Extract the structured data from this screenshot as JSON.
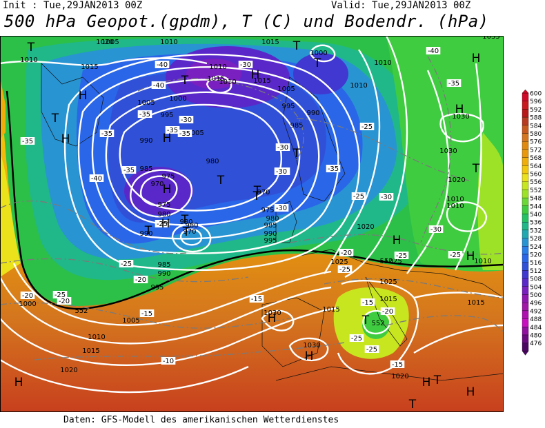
{
  "header": {
    "init": "Init : Tue,29JAN2013 00Z",
    "valid": "Valid: Tue,29JAN2013 00Z",
    "title": "500 hPa Geopot.(gpdm), T (C) und Bodendr. (hPa)"
  },
  "footer": {
    "source": "Daten: GFS-Modell des amerikanischen Wetterdienstes"
  },
  "legend": {
    "levels": [
      "600",
      "596",
      "592",
      "588",
      "584",
      "580",
      "576",
      "572",
      "568",
      "564",
      "560",
      "556",
      "552",
      "548",
      "544",
      "540",
      "536",
      "532",
      "528",
      "524",
      "520",
      "516",
      "512",
      "508",
      "504",
      "500",
      "496",
      "492",
      "488",
      "484",
      "480",
      "476"
    ],
    "colors": [
      "#d10a2a",
      "#c81a20",
      "#b81818",
      "#b83a20",
      "#c85a1e",
      "#d4761e",
      "#e08a10",
      "#e89a0c",
      "#efae0a",
      "#f3c70c",
      "#ece21c",
      "#c8e620",
      "#9ee228",
      "#6cd838",
      "#40cc40",
      "#24c264",
      "#20b888",
      "#22a8b0",
      "#2894d2",
      "#2a7ee8",
      "#2a66e8",
      "#3050d8",
      "#4038d0",
      "#5a28c8",
      "#7a20c0",
      "#9018b0",
      "#a018a8",
      "#b010b0",
      "#c810c0",
      "#9010a0",
      "#6a0a80",
      "#4a0660"
    ]
  },
  "map": {
    "pressure_labels": [
      "1020",
      "1010",
      "1010",
      "1015",
      "1000",
      "1010",
      "1015",
      "1010",
      "1005",
      "1000",
      "1005",
      "995",
      "995",
      "1005",
      "990",
      "985",
      "990",
      "985",
      "980",
      "975",
      "970",
      "975",
      "980",
      "970",
      "980",
      "975",
      "980",
      "985",
      "990",
      "995",
      "985",
      "990",
      "995",
      "1000",
      "1005",
      "1010",
      "1015",
      "1020",
      "1025",
      "1030",
      "1030",
      "1025",
      "1020",
      "1030",
      "1015",
      "1020",
      "1015",
      "1015",
      "1010",
      "1010",
      "1015",
      "1005",
      "1010",
      "1015",
      "1025",
      "1035",
      "1030",
      "1020",
      "1010",
      "1010",
      "990",
      "980",
      "970"
    ],
    "temperature_labels": [
      "-40",
      "-40",
      "-35",
      "-35",
      "-30",
      "-30",
      "-35",
      "-35",
      "-35",
      "-40",
      "-35",
      "-30",
      "-25",
      "-30",
      "-30",
      "-35",
      "-30",
      "-25",
      "-25",
      "-20",
      "-25",
      "-25",
      "-20",
      "-20",
      "-15",
      "-15",
      "-10",
      "-15",
      "-20",
      "-25",
      "-25",
      "-15",
      "-20",
      "-25",
      "-30",
      "-30",
      "-35",
      "-25",
      "-25",
      "-40"
    ],
    "highs": [
      "H",
      "H",
      "H",
      "H",
      "H",
      "H",
      "H",
      "H",
      "H",
      "H",
      "H",
      "H",
      "H",
      "H",
      "H"
    ],
    "lows": [
      "T",
      "T",
      "T",
      "T",
      "T",
      "T",
      "T",
      "T",
      "T",
      "T",
      "T",
      "T",
      "T",
      "T",
      "T",
      "T"
    ],
    "contour_552_label": "552"
  }
}
